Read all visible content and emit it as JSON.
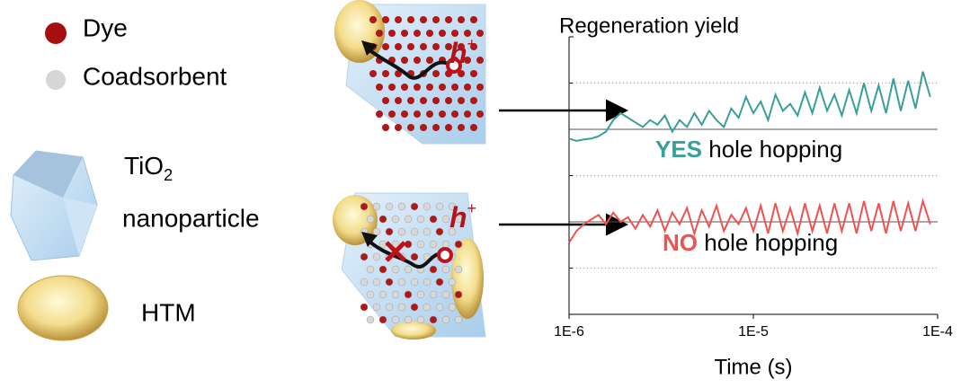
{
  "legend": {
    "dye": "Dye",
    "coadsorbent": "Coadsorbent",
    "tio": "TiO",
    "tio_sub": "2",
    "nanoparticle": "nanoparticle",
    "htm": "HTM"
  },
  "panels": [
    {
      "carrier": "h",
      "charge": "+"
    },
    {
      "carrier": "h",
      "charge": "+"
    }
  ],
  "chart_data": {
    "type": "line",
    "y_label": "Regeneration yield",
    "x_label": "Time (s)",
    "x_scale": "log",
    "xlim": [
      1e-06,
      0.0001
    ],
    "xticks": [
      {
        "value": 1e-06,
        "label": "1E-6"
      },
      {
        "value": 1e-05,
        "label": "1E-5"
      },
      {
        "value": 0.0001,
        "label": "1E-4"
      }
    ],
    "ylim": [
      0,
      6
    ],
    "yticks": [
      0,
      1,
      2,
      3,
      4,
      5,
      6
    ],
    "grid": true,
    "reference_lines": [
      2,
      4
    ],
    "x": [
      1e-06,
      1.096e-06,
      1.202e-06,
      1.318e-06,
      1.445e-06,
      1.585e-06,
      1.738e-06,
      1.905e-06,
      2.089e-06,
      2.291e-06,
      2.512e-06,
      2.754e-06,
      3.02e-06,
      3.311e-06,
      3.631e-06,
      3.981e-06,
      4.365e-06,
      4.786e-06,
      5.248e-06,
      5.754e-06,
      6.31e-06,
      6.918e-06,
      7.586e-06,
      8.318e-06,
      9.12e-06,
      1e-05,
      1.096e-05,
      1.202e-05,
      1.318e-05,
      1.445e-05,
      1.585e-05,
      1.738e-05,
      1.905e-05,
      2.089e-05,
      2.291e-05,
      2.512e-05,
      2.754e-05,
      3.02e-05,
      3.311e-05,
      3.631e-05,
      3.981e-05,
      4.365e-05,
      4.786e-05,
      5.248e-05,
      5.754e-05,
      6.31e-05,
      6.918e-05,
      7.586e-05,
      8.318e-05,
      9.12e-05
    ],
    "series": [
      {
        "color": "#3a9e9a",
        "annotation": {
          "keyword": "YES",
          "text": "hole hopping"
        },
        "values": [
          3.8,
          3.75,
          3.78,
          3.8,
          3.85,
          3.95,
          4.2,
          4.35,
          4.25,
          4.15,
          4.05,
          4.2,
          4.1,
          4.3,
          3.95,
          4.2,
          4.05,
          4.35,
          4.1,
          4.4,
          4.2,
          4.05,
          4.45,
          4.25,
          4.7,
          4.35,
          4.6,
          4.2,
          4.75,
          4.4,
          4.55,
          4.3,
          4.8,
          4.35,
          4.9,
          4.4,
          4.75,
          4.3,
          4.85,
          4.35,
          5.0,
          4.4,
          4.95,
          4.35,
          5.1,
          4.4,
          5.05,
          4.45,
          5.25,
          4.7
        ]
      },
      {
        "color": "#f0524f",
        "annotation": {
          "keyword": "NO",
          "text": "hole hopping"
        },
        "values": [
          1.55,
          1.8,
          1.95,
          2.05,
          2.15,
          1.95,
          2.2,
          2.0,
          2.1,
          1.85,
          2.15,
          1.9,
          2.25,
          1.8,
          2.2,
          1.95,
          2.3,
          1.75,
          2.25,
          1.9,
          2.35,
          1.8,
          2.15,
          1.95,
          2.3,
          1.8,
          2.35,
          1.75,
          2.4,
          1.8,
          2.3,
          1.75,
          2.4,
          1.8,
          2.35,
          1.75,
          2.4,
          1.8,
          2.4,
          1.75,
          2.45,
          1.8,
          2.4,
          1.75,
          2.45,
          1.8,
          2.4,
          1.8,
          2.45,
          1.95
        ]
      }
    ]
  }
}
